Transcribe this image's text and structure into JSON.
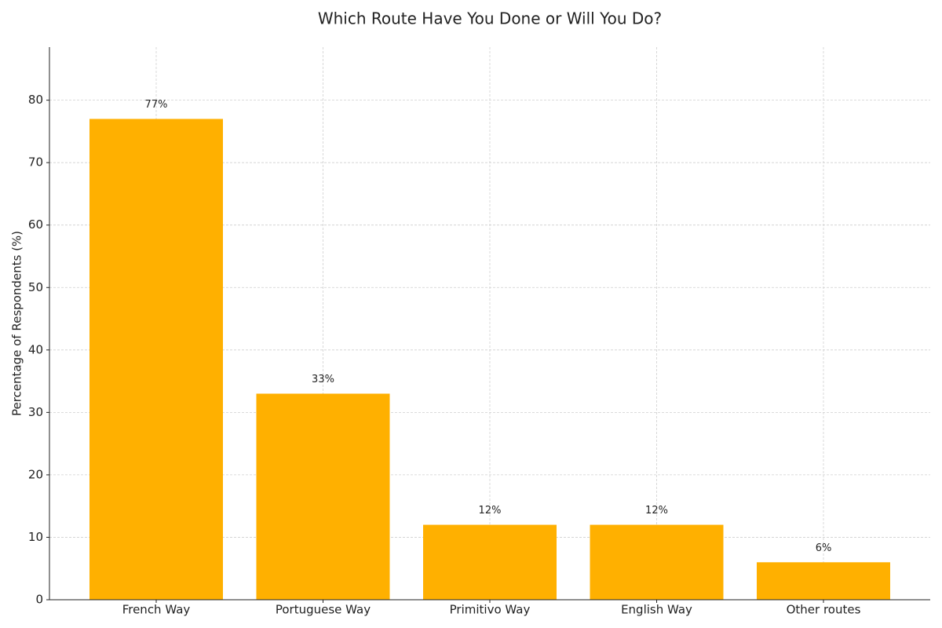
{
  "chart_data": {
    "type": "bar",
    "title": "Which Route Have You Done or Will You Do?",
    "y_label": "Percentage of Respondents (%)",
    "categories": [
      "French Way",
      "Portuguese Way",
      "Primitivo Way",
      "English Way",
      "Other routes"
    ],
    "values": [
      77,
      33,
      12,
      12,
      6
    ],
    "value_labels": [
      "77%",
      "33%",
      "12%",
      "12%",
      "6%"
    ],
    "color": "#ffb000",
    "ylim": [
      0,
      88.5
    ],
    "yticks": [
      0,
      10,
      20,
      30,
      40,
      50,
      60,
      70,
      80
    ],
    "grid": true
  }
}
